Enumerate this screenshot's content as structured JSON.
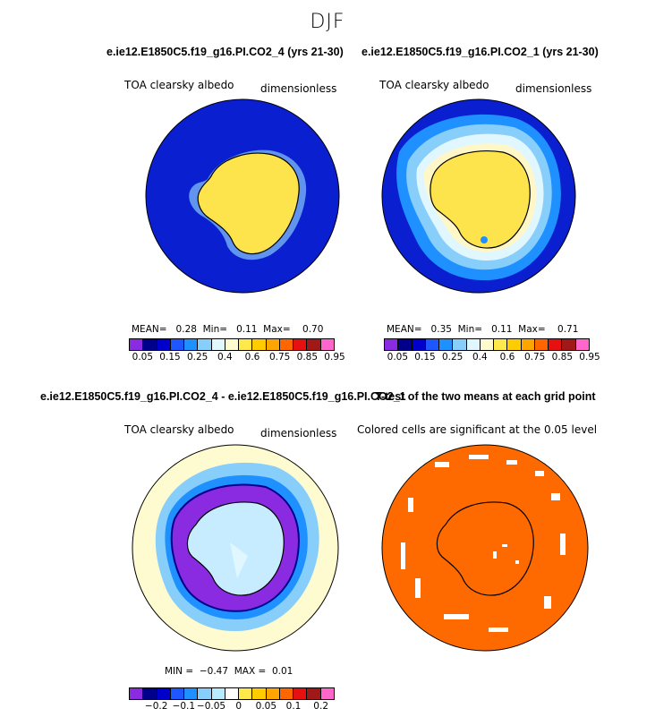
{
  "suptitle": "DJF",
  "panels": {
    "p1": {
      "title": "e.ie12.E1850C5.f19_g16.PI.CO2_4 (yrs 21-30)",
      "left": "TOA clearsky albedo",
      "right": "dimensionless",
      "stats": {
        "mean_label": "MEAN=",
        "mean": "0.28",
        "min_label": "Min=",
        "min": "0.11",
        "max_label": "Max=",
        "max": "0.70"
      }
    },
    "p2": {
      "title": "e.ie12.E1850C5.f19_g16.PI.CO2_1 (yrs 21-30)",
      "left": "TOA clearsky albedo",
      "right": "dimensionless",
      "stats": {
        "mean_label": "MEAN=",
        "mean": "0.35",
        "min_label": "Min=",
        "min": "0.11",
        "max_label": "Max=",
        "max": "0.71"
      }
    },
    "p3": {
      "title": "e.ie12.E1850C5.f19_g16.PI.CO2_4 - e.ie12.E1850C5.f19_g16.PI.CO2_1",
      "left": "TOA clearsky albedo",
      "right": "dimensionless",
      "stats": {
        "min_label": "MIN =",
        "min": "−0.47",
        "max_label": "MAX =",
        "max": "0.01"
      }
    },
    "p4": {
      "title": "T-test of the two means at each grid point",
      "left": "Colored cells are significant at the 0.05 level"
    }
  },
  "colorbar_abs": {
    "colors": [
      "#8a2be2",
      "#00008b",
      "#0000cd",
      "#1e56ff",
      "#1e90ff",
      "#87cefa",
      "#e0f7ff",
      "#fffbd0",
      "#ffe84a",
      "#ffcc00",
      "#ffa500",
      "#ff6600",
      "#e61010",
      "#a01818",
      "#ff66cc"
    ],
    "labels": [
      "0.05",
      "0.15",
      "0.25",
      "0.4",
      "0.6",
      "0.75",
      "0.85",
      "0.95"
    ]
  },
  "colorbar_diff": {
    "colors": [
      "#8a2be2",
      "#00008b",
      "#0000cd",
      "#1e56ff",
      "#1e90ff",
      "#87cefa",
      "#b7e9ff",
      "#ffffff",
      "#ffe84a",
      "#ffcc00",
      "#ffa500",
      "#ff6600",
      "#e61010",
      "#a01818",
      "#ff66cc"
    ],
    "labels": [
      "−0.2",
      "−0.1",
      "−0.05",
      "0",
      "0.05",
      "0.1",
      "0.2"
    ]
  }
}
